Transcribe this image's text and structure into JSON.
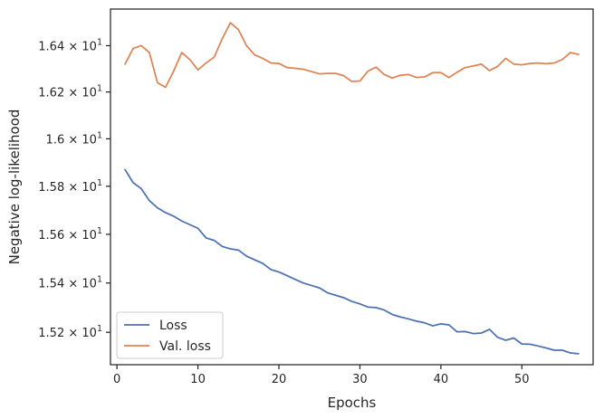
{
  "chart_data": {
    "type": "line",
    "xlabel": "Epochs",
    "ylabel": "Negative log-likelihood",
    "xlim": [
      -0.8,
      58.8
    ],
    "ylim": [
      15.07,
      16.56
    ],
    "y_scale": "log",
    "xticks": [
      {
        "value": 0,
        "label": "0"
      },
      {
        "value": 10,
        "label": "10"
      },
      {
        "value": 20,
        "label": "20"
      },
      {
        "value": 30,
        "label": "30"
      },
      {
        "value": 40,
        "label": "40"
      },
      {
        "value": 50,
        "label": "50"
      }
    ],
    "yticks": [
      {
        "value": 15.2,
        "mantissa": "1.52",
        "base": "10",
        "exp": "1"
      },
      {
        "value": 15.4,
        "mantissa": "1.54",
        "base": "10",
        "exp": "1"
      },
      {
        "value": 15.6,
        "mantissa": "1.56",
        "base": "10",
        "exp": "1"
      },
      {
        "value": 15.8,
        "mantissa": "1.58",
        "base": "10",
        "exp": "1"
      },
      {
        "value": 16.0,
        "mantissa": "1.6",
        "base": "10",
        "exp": "1"
      },
      {
        "value": 16.2,
        "mantissa": "1.62",
        "base": "10",
        "exp": "1"
      },
      {
        "value": 16.4,
        "mantissa": "1.64",
        "base": "10",
        "exp": "1"
      }
    ],
    "grid": false,
    "legend_position": "lower-left",
    "series": [
      {
        "name": "Loss",
        "color": "#4c72b0",
        "x": [
          1,
          2,
          3,
          4,
          5,
          6,
          7,
          8,
          9,
          10,
          11,
          12,
          13,
          14,
          15,
          16,
          17,
          18,
          19,
          20,
          21,
          22,
          23,
          24,
          25,
          26,
          27,
          28,
          29,
          30,
          31,
          32,
          33,
          34,
          35,
          36,
          37,
          38,
          39,
          40,
          41,
          42,
          43,
          44,
          45,
          46,
          47,
          48,
          49,
          50,
          51,
          52,
          53,
          54,
          55,
          56,
          57
        ],
        "values": [
          15.87,
          15.815,
          15.79,
          15.74,
          15.71,
          15.69,
          15.675,
          15.655,
          15.64,
          15.625,
          15.585,
          15.575,
          15.55,
          15.54,
          15.535,
          15.51,
          15.495,
          15.48,
          15.455,
          15.445,
          15.43,
          15.415,
          15.4,
          15.39,
          15.38,
          15.36,
          15.35,
          15.34,
          15.325,
          15.315,
          15.302,
          15.3,
          15.29,
          15.272,
          15.262,
          15.254,
          15.245,
          15.238,
          15.226,
          15.234,
          15.23,
          15.202,
          15.203,
          15.195,
          15.197,
          15.212,
          15.18,
          15.168,
          15.177,
          15.153,
          15.152,
          15.145,
          15.137,
          15.128,
          15.128,
          15.117,
          15.114
        ]
      },
      {
        "name": "Val. loss",
        "color": "#dd8452",
        "x": [
          1,
          2,
          3,
          4,
          5,
          6,
          7,
          8,
          9,
          10,
          11,
          12,
          13,
          14,
          15,
          16,
          17,
          18,
          19,
          20,
          21,
          22,
          23,
          24,
          25,
          26,
          27,
          28,
          29,
          30,
          31,
          32,
          33,
          34,
          35,
          36,
          37,
          38,
          39,
          40,
          41,
          42,
          43,
          44,
          45,
          46,
          47,
          48,
          49,
          50,
          51,
          52,
          53,
          54,
          55,
          56,
          57
        ],
        "values": [
          16.32,
          16.388,
          16.4,
          16.37,
          16.24,
          16.22,
          16.29,
          16.37,
          16.34,
          16.295,
          16.325,
          16.35,
          16.43,
          16.5,
          16.47,
          16.4,
          16.36,
          16.345,
          16.325,
          16.323,
          16.305,
          16.302,
          16.298,
          16.288,
          16.278,
          16.28,
          16.28,
          16.27,
          16.245,
          16.247,
          16.29,
          16.307,
          16.275,
          16.26,
          16.272,
          16.275,
          16.262,
          16.265,
          16.283,
          16.283,
          16.262,
          16.285,
          16.305,
          16.312,
          16.32,
          16.292,
          16.31,
          16.345,
          16.32,
          16.317,
          16.323,
          16.325,
          16.322,
          16.325,
          16.34,
          16.37,
          16.362
        ]
      }
    ]
  }
}
